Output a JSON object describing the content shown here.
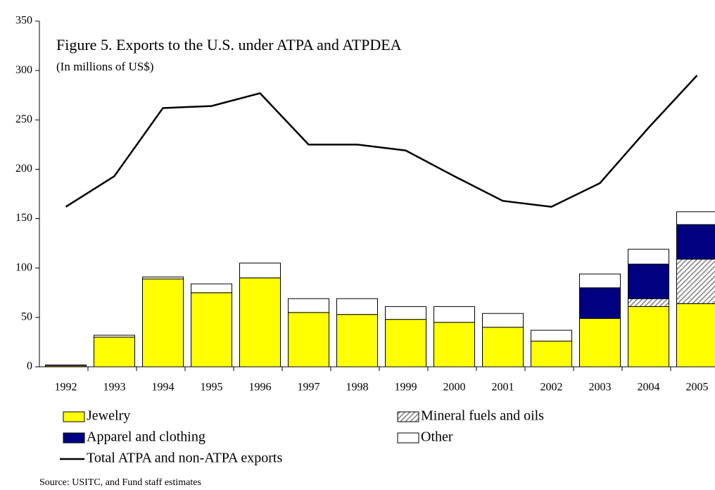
{
  "chart_data": {
    "type": "bar",
    "stacked": true,
    "title": "Figure 5. Exports to the U.S. under ATPA and ATPDEA",
    "subtitle": "(In millions of US$)",
    "source": "Source: USITC, and Fund staff estimates",
    "categories": [
      "1992",
      "1993",
      "1994",
      "1995",
      "1996",
      "1997",
      "1998",
      "1999",
      "2000",
      "2001",
      "2002",
      "2003",
      "2004",
      "2005"
    ],
    "series": [
      {
        "name": "Jewelry",
        "type": "bar",
        "color": "#ffff00",
        "values": [
          1,
          30,
          89,
          75,
          90,
          55,
          53,
          48,
          45,
          40,
          26,
          49,
          61,
          64
        ]
      },
      {
        "name": "Mineral fuels and oils",
        "type": "bar",
        "color": "#808080",
        "pattern": "hatch",
        "values": [
          0,
          0,
          0,
          0,
          0,
          0,
          0,
          0,
          0,
          0,
          0,
          0,
          8,
          45
        ]
      },
      {
        "name": "Apparel and clothing",
        "type": "bar",
        "color": "#000080",
        "values": [
          0,
          0,
          0,
          0,
          0,
          0,
          0,
          0,
          0,
          0,
          0,
          31,
          35,
          35
        ]
      },
      {
        "name": "Other",
        "type": "bar",
        "color": "#ffffff",
        "values": [
          1,
          2,
          2,
          9,
          15,
          14,
          16,
          13,
          16,
          14,
          11,
          14,
          15,
          13
        ]
      },
      {
        "name": "Total ATPA and non-ATPA exports",
        "type": "line",
        "color": "#000000",
        "values": [
          162,
          193,
          262,
          264,
          277,
          225,
          225,
          219,
          193,
          168,
          162,
          186,
          242,
          295
        ]
      }
    ],
    "ylim": [
      0,
      350
    ],
    "yticks": [
      0,
      50,
      100,
      150,
      200,
      250,
      300,
      350
    ],
    "grid": false
  }
}
